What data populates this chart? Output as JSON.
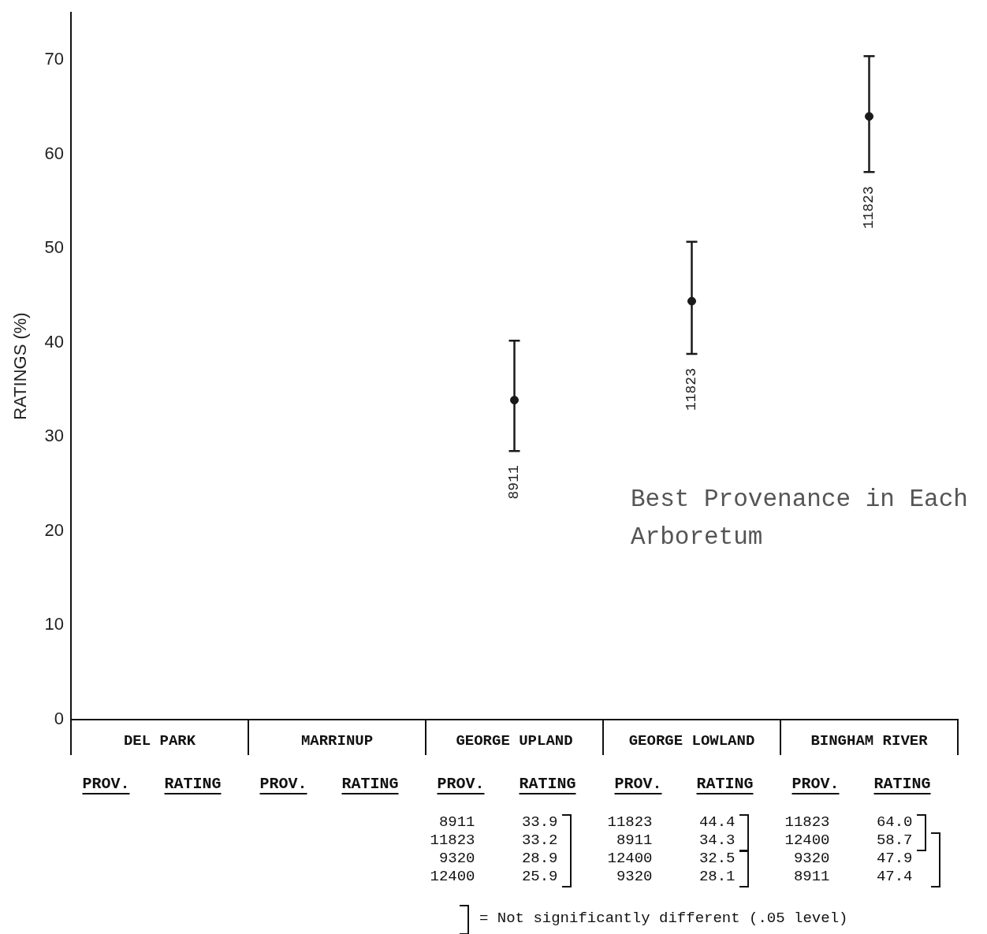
{
  "chart_data": {
    "type": "scatter",
    "title": "Best Provenance in Each Arboretum",
    "ylabel": "RATINGS (%)",
    "categories": [
      "DEL PARK",
      "MARRINUP",
      "GEORGE UPLAND",
      "GEORGE LOWLAND",
      "BINGHAM RIVER"
    ],
    "values": [
      null,
      null,
      33.9,
      44.4,
      64.0
    ],
    "errors": [
      null,
      null,
      [
        28.5,
        40.2
      ],
      [
        38.8,
        50.7
      ],
      [
        58.1,
        70.4
      ]
    ],
    "color": "#1a1a1a",
    "marker": "circle",
    "grid": false,
    "legend": false,
    "ylim": [
      0,
      75
    ],
    "yticks": [
      0,
      10,
      20,
      30,
      40,
      50,
      60,
      70
    ],
    "annotations": [
      "8911",
      "11823",
      "11823",
      "PROV.",
      "RATING",
      "PROV.",
      "RATING",
      "PROV.",
      "RATING",
      "PROV.",
      "RATING",
      "PROV.",
      "RATING",
      "8911",
      "33.9",
      "11823",
      "33.2",
      "9320",
      "28.9",
      "12400",
      "25.9",
      "11823",
      "44.4",
      "8911",
      "34.3",
      "12400",
      "32.5",
      "9320",
      "28.1",
      "11823",
      "64.0",
      "12400",
      "58.7",
      "9320",
      "47.9",
      "8911",
      "47.4",
      "= Not significantly different (.05 level)"
    ]
  }
}
